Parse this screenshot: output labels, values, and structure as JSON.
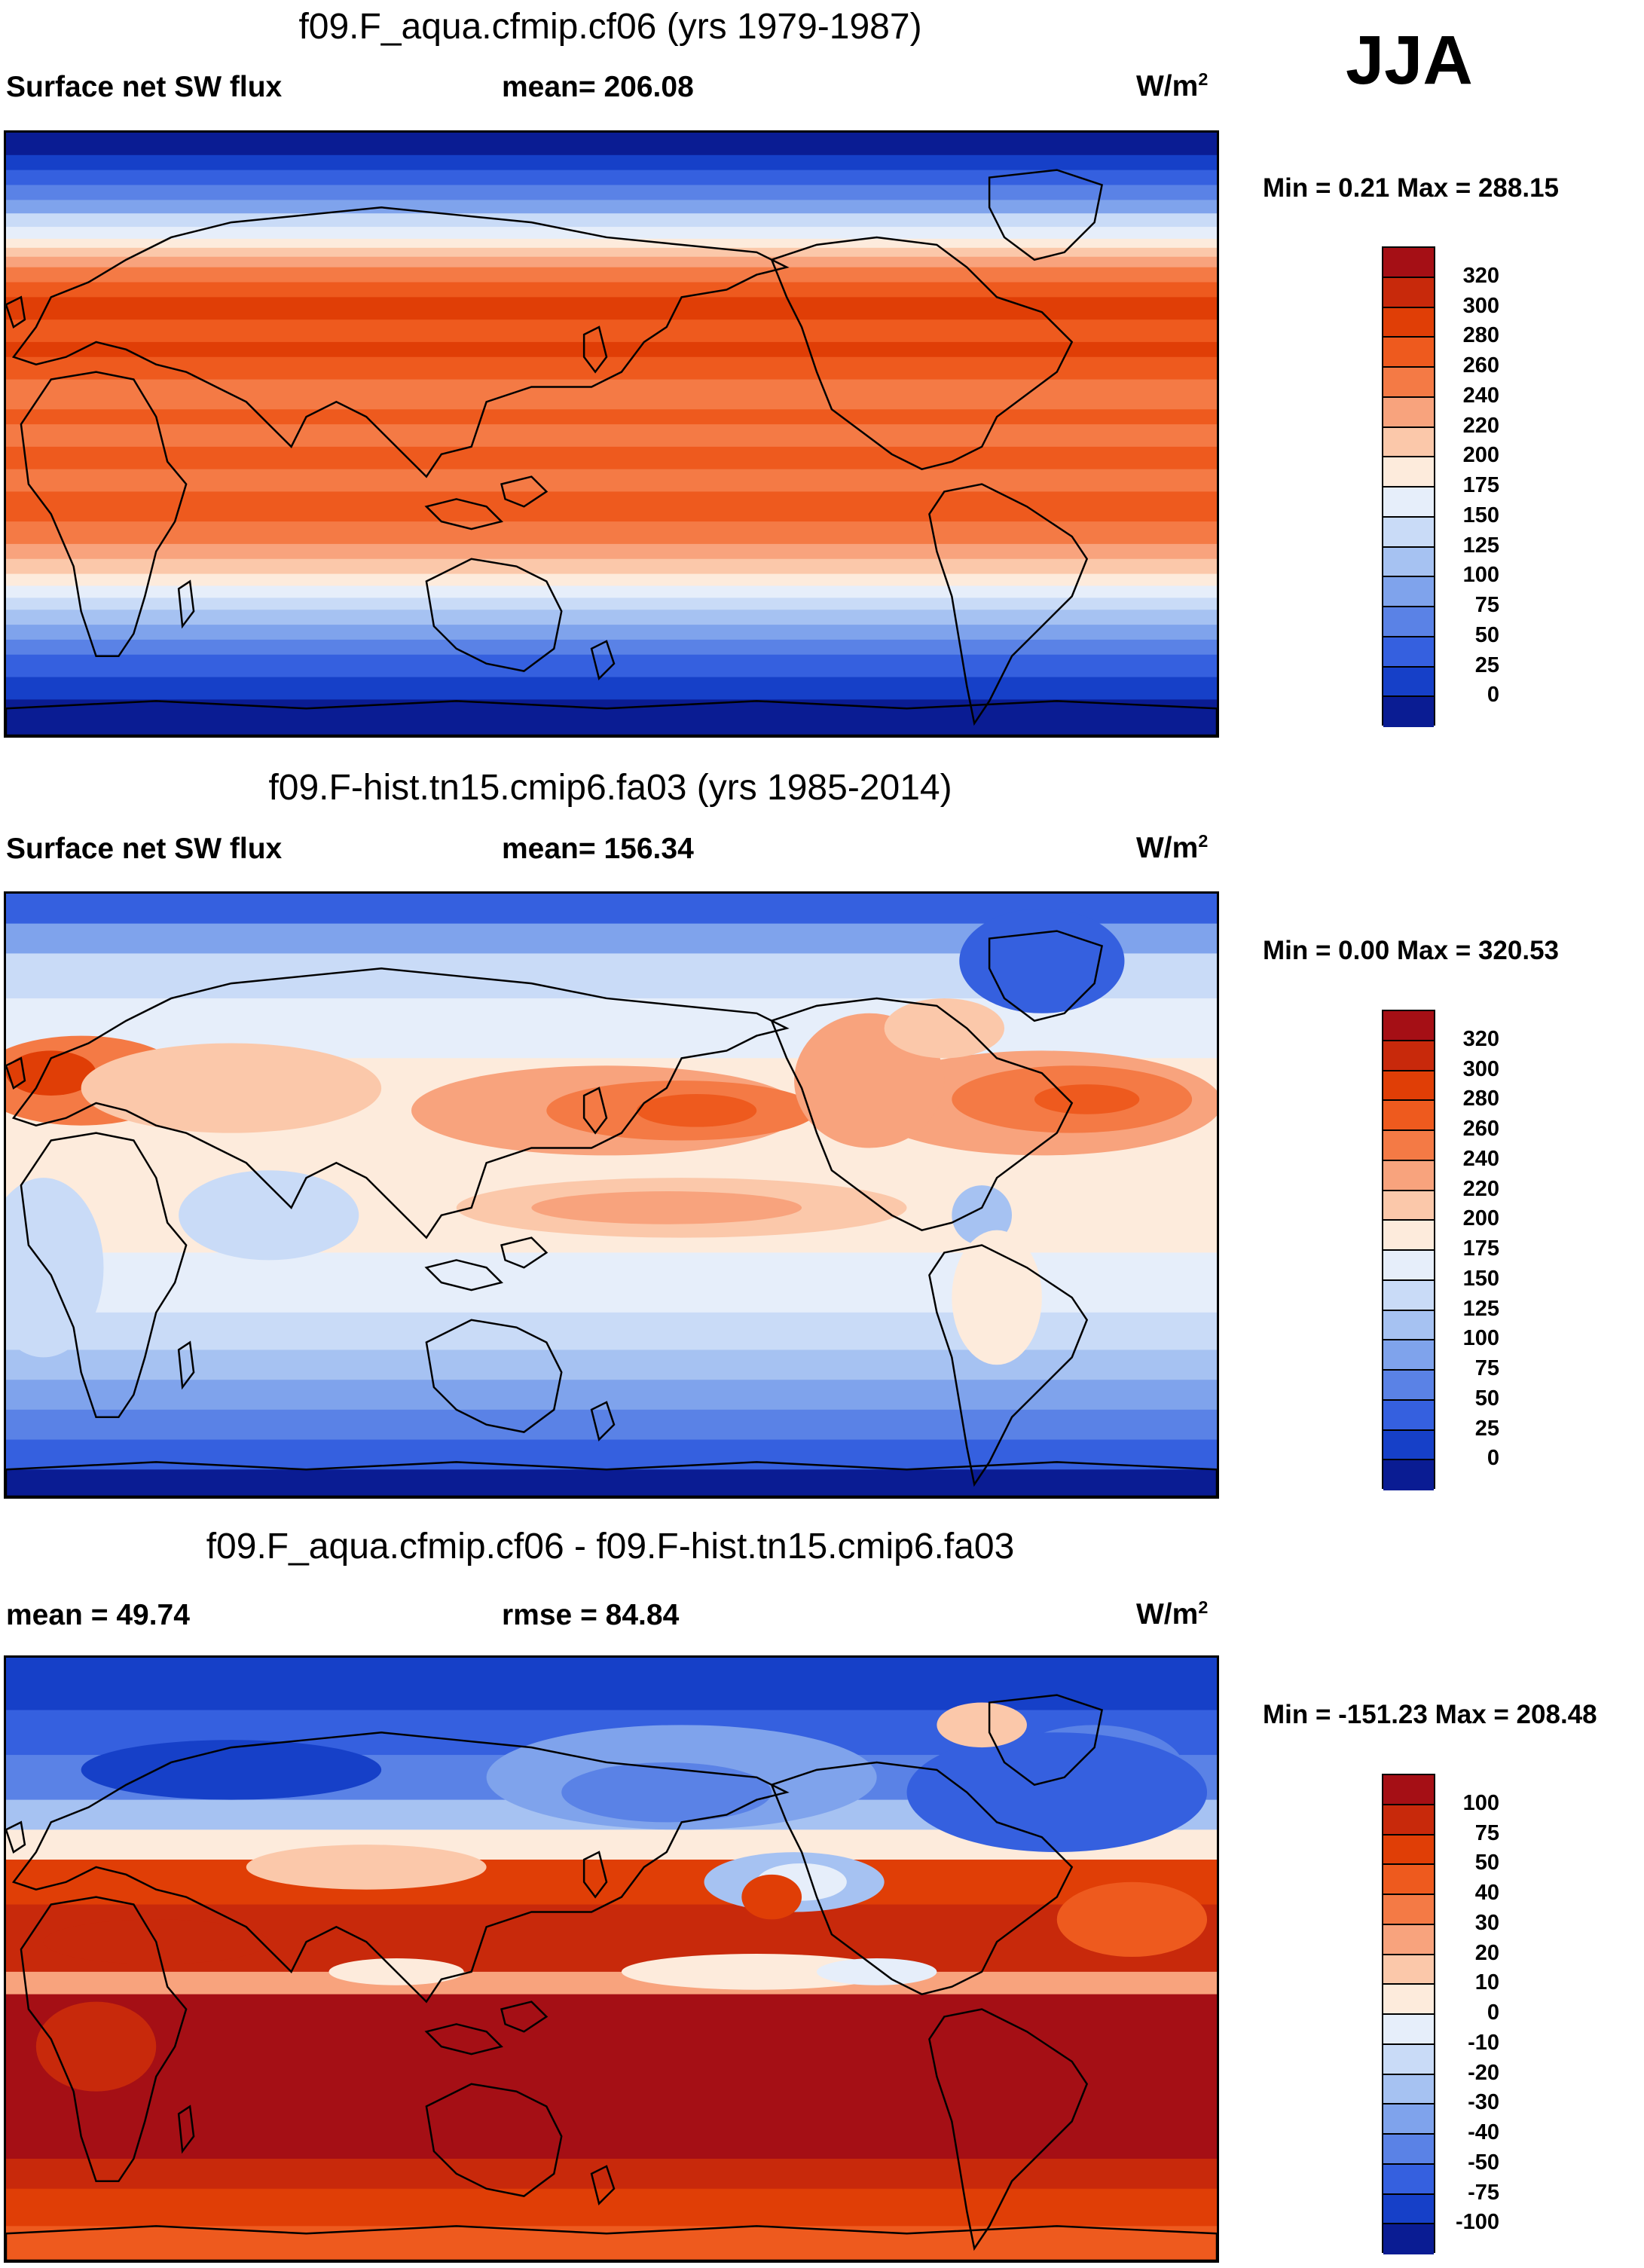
{
  "season": "JJA",
  "units_label": "W/m",
  "units_exp": "2",
  "panels": [
    {
      "title": "f09.F_aqua.cfmip.cf06 (yrs 1979-1987)",
      "left_label": "Surface net SW flux",
      "mid_label": "mean= 206.08",
      "minmax": "Min =   0.21 Max = 288.15",
      "colorbar": {
        "labels": [
          "320",
          "300",
          "280",
          "260",
          "240",
          "220",
          "200",
          "175",
          "150",
          "125",
          "100",
          "75",
          "50",
          "25",
          "0"
        ],
        "colors": [
          "#a50f15",
          "#c8290b",
          "#e03e06",
          "#ee5a1e",
          "#f47a45",
          "#f8a37d",
          "#fbc8aa",
          "#fdebdc",
          "#e6eefa",
          "#c9dbf7",
          "#a6c2f2",
          "#7fa3ec",
          "#5a82e6",
          "#3560df",
          "#1640c8",
          "#0a1c93"
        ]
      },
      "field": "aqua"
    },
    {
      "title": "f09.F-hist.tn15.cmip6.fa03 (yrs 1985-2014)",
      "left_label": "Surface net SW flux",
      "mid_label": "mean= 156.34",
      "minmax": "Min =   0.00 Max = 320.53",
      "colorbar": {
        "labels": [
          "320",
          "300",
          "280",
          "260",
          "240",
          "220",
          "200",
          "175",
          "150",
          "125",
          "100",
          "75",
          "50",
          "25",
          "0"
        ],
        "colors": [
          "#a50f15",
          "#c8290b",
          "#e03e06",
          "#ee5a1e",
          "#f47a45",
          "#f8a37d",
          "#fbc8aa",
          "#fdebdc",
          "#e6eefa",
          "#c9dbf7",
          "#a6c2f2",
          "#7fa3ec",
          "#5a82e6",
          "#3560df",
          "#1640c8",
          "#0a1c93"
        ]
      },
      "field": "hist"
    },
    {
      "title": "f09.F_aqua.cfmip.cf06 - f09.F-hist.tn15.cmip6.fa03",
      "left_label": "mean =  49.74",
      "mid_label": "rmse =  84.84",
      "minmax": "Min = -151.23 Max = 208.48",
      "colorbar": {
        "labels": [
          "100",
          "75",
          "50",
          "40",
          "30",
          "20",
          "10",
          "0",
          "-10",
          "-20",
          "-30",
          "-40",
          "-50",
          "-75",
          "-100"
        ],
        "colors": [
          "#a50f15",
          "#c8290b",
          "#e03e06",
          "#ee5a1e",
          "#f47a45",
          "#f8a37d",
          "#fbc8aa",
          "#fdebdc",
          "#e6eefa",
          "#c9dbf7",
          "#a6c2f2",
          "#7fa3ec",
          "#5a82e6",
          "#3560df",
          "#1640c8",
          "#0a1c93"
        ]
      },
      "field": "diff"
    }
  ]
}
